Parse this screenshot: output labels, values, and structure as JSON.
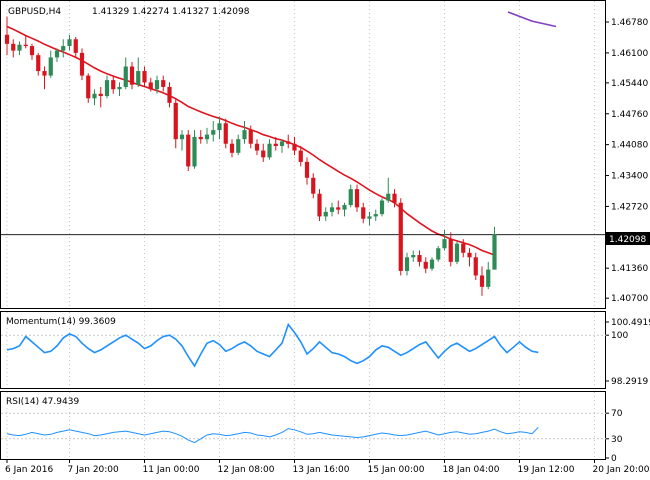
{
  "header": {
    "symbol": "GBPUSD,H4",
    "ohlc": "1.41329 1.42274 1.41327 1.42098"
  },
  "colors": {
    "bull": "#2e8b57",
    "bear": "#d8141e",
    "ma": "#e0141e",
    "ma_upper": "#8040c0",
    "indicator": "#1e90ff",
    "grid": "#c8c8c8",
    "frame": "#000000"
  },
  "chart_data": [
    {
      "type": "candlestick",
      "title": "GBPUSD,H4",
      "y_ticks": [
        "1.46780",
        "1.46100",
        "1.45440",
        "1.44760",
        "1.44080",
        "1.43400",
        "1.42720",
        "1.42040",
        "1.41360",
        "1.40700"
      ],
      "ylim": [
        1.4055,
        1.47
      ],
      "last_price": "1.42098",
      "last_value": 1.42098,
      "x_labels": [
        "6 Jan 2016",
        "7 Jan 20:00",
        "11 Jan 00:00",
        "12 Jan 08:00",
        "13 Jan 16:00",
        "15 Jan 00:00",
        "18 Jan 04:00",
        "19 Jan 12:00",
        "20 Jan 20:00"
      ],
      "x_label_index": [
        0,
        10,
        22,
        34,
        46,
        58,
        70,
        82,
        94
      ],
      "candles": [
        [
          1.465,
          1.469,
          1.4605,
          1.463
        ],
        [
          1.463,
          1.464,
          1.46,
          1.4615
        ],
        [
          1.4615,
          1.4635,
          1.4605,
          1.4628
        ],
        [
          1.4628,
          1.465,
          1.462,
          1.4625
        ],
        [
          1.4625,
          1.463,
          1.4595,
          1.4605
        ],
        [
          1.4605,
          1.461,
          1.456,
          1.457
        ],
        [
          1.457,
          1.458,
          1.453,
          1.456
        ],
        [
          1.456,
          1.4615,
          1.4555,
          1.46
        ],
        [
          1.46,
          1.462,
          1.459,
          1.4615
        ],
        [
          1.4615,
          1.464,
          1.46,
          1.4625
        ],
        [
          1.4625,
          1.465,
          1.4615,
          1.464
        ],
        [
          1.464,
          1.4645,
          1.46,
          1.461
        ],
        [
          1.461,
          1.462,
          1.455,
          1.456
        ],
        [
          1.456,
          1.4565,
          1.45,
          1.451
        ],
        [
          1.451,
          1.453,
          1.4495,
          1.452
        ],
        [
          1.452,
          1.4535,
          1.449,
          1.4515
        ],
        [
          1.4515,
          1.456,
          1.451,
          1.455
        ],
        [
          1.455,
          1.456,
          1.452,
          1.453
        ],
        [
          1.453,
          1.4545,
          1.4515,
          1.4535
        ],
        [
          1.4535,
          1.46,
          1.453,
          1.458
        ],
        [
          1.458,
          1.459,
          1.453,
          1.454
        ],
        [
          1.454,
          1.46,
          1.4535,
          1.457
        ],
        [
          1.457,
          1.458,
          1.4535,
          1.4545
        ],
        [
          1.4545,
          1.4555,
          1.4525,
          1.453
        ],
        [
          1.453,
          1.456,
          1.452,
          1.455
        ],
        [
          1.455,
          1.456,
          1.4525,
          1.4535
        ],
        [
          1.4535,
          1.4545,
          1.449,
          1.45
        ],
        [
          1.45,
          1.451,
          1.44,
          1.442
        ],
        [
          1.442,
          1.444,
          1.4395,
          1.443
        ],
        [
          1.443,
          1.444,
          1.435,
          1.436
        ],
        [
          1.436,
          1.444,
          1.4355,
          1.4425
        ],
        [
          1.4425,
          1.444,
          1.441,
          1.442
        ],
        [
          1.442,
          1.4445,
          1.441,
          1.443
        ],
        [
          1.443,
          1.446,
          1.4415,
          1.444
        ],
        [
          1.444,
          1.447,
          1.442,
          1.4455
        ],
        [
          1.4455,
          1.4465,
          1.44,
          1.441
        ],
        [
          1.441,
          1.442,
          1.438,
          1.439
        ],
        [
          1.439,
          1.443,
          1.4385,
          1.442
        ],
        [
          1.442,
          1.446,
          1.441,
          1.444
        ],
        [
          1.444,
          1.445,
          1.44,
          1.441
        ],
        [
          1.441,
          1.442,
          1.4385,
          1.4395
        ],
        [
          1.4395,
          1.441,
          1.437,
          1.438
        ],
        [
          1.438,
          1.442,
          1.4375,
          1.441
        ],
        [
          1.441,
          1.4425,
          1.4395,
          1.4405
        ],
        [
          1.4405,
          1.442,
          1.439,
          1.4415
        ],
        [
          1.4415,
          1.443,
          1.44,
          1.441
        ],
        [
          1.441,
          1.4425,
          1.4385,
          1.4395
        ],
        [
          1.4395,
          1.4405,
          1.436,
          1.437
        ],
        [
          1.437,
          1.438,
          1.432,
          1.4335
        ],
        [
          1.4335,
          1.4345,
          1.429,
          1.43
        ],
        [
          1.43,
          1.431,
          1.424,
          1.425
        ],
        [
          1.425,
          1.427,
          1.424,
          1.426
        ],
        [
          1.426,
          1.428,
          1.425,
          1.427
        ],
        [
          1.427,
          1.4285,
          1.4255,
          1.4265
        ],
        [
          1.4265,
          1.428,
          1.425,
          1.4275
        ],
        [
          1.4275,
          1.432,
          1.427,
          1.431
        ],
        [
          1.431,
          1.432,
          1.426,
          1.427
        ],
        [
          1.427,
          1.428,
          1.4235,
          1.4245
        ],
        [
          1.4245,
          1.426,
          1.423,
          1.425
        ],
        [
          1.425,
          1.4265,
          1.424,
          1.4255
        ],
        [
          1.4255,
          1.429,
          1.425,
          1.4285
        ],
        [
          1.4285,
          1.4335,
          1.428,
          1.43
        ],
        [
          1.43,
          1.431,
          1.427,
          1.428
        ],
        [
          1.428,
          1.429,
          1.412,
          1.413
        ],
        [
          1.413,
          1.417,
          1.412,
          1.416
        ],
        [
          1.416,
          1.4175,
          1.415,
          1.4165
        ],
        [
          1.4165,
          1.4175,
          1.414,
          1.415
        ],
        [
          1.415,
          1.416,
          1.4125,
          1.4135
        ],
        [
          1.4135,
          1.416,
          1.413,
          1.4155
        ],
        [
          1.4155,
          1.4185,
          1.415,
          1.418
        ],
        [
          1.418,
          1.422,
          1.4175,
          1.42
        ],
        [
          1.42,
          1.4215,
          1.414,
          1.415
        ],
        [
          1.415,
          1.4195,
          1.4145,
          1.419
        ],
        [
          1.419,
          1.42,
          1.416,
          1.417
        ],
        [
          1.417,
          1.418,
          1.414,
          1.416
        ],
        [
          1.416,
          1.417,
          1.411,
          1.412
        ],
        [
          1.412,
          1.414,
          1.4075,
          1.4095
        ],
        [
          1.4095,
          1.415,
          1.409,
          1.4133
        ],
        [
          1.4133,
          1.4227,
          1.4133,
          1.421
        ]
      ],
      "ma_series": [
        1.4668,
        1.4662,
        1.4655,
        1.4648,
        1.4642,
        1.4636,
        1.4629,
        1.4623,
        1.4617,
        1.4612,
        1.4606,
        1.46,
        1.4593,
        1.4585,
        1.4577,
        1.457,
        1.4564,
        1.4559,
        1.4554,
        1.455,
        1.4545,
        1.454,
        1.4536,
        1.4531,
        1.4527,
        1.4522,
        1.4516,
        1.4509,
        1.4501,
        1.4492,
        1.4486,
        1.448,
        1.4475,
        1.447,
        1.4466,
        1.4461,
        1.4455,
        1.445,
        1.4446,
        1.4441,
        1.4436,
        1.443,
        1.4426,
        1.4421,
        1.4418,
        1.4413,
        1.4408,
        1.4402,
        1.4394,
        1.4385,
        1.4375,
        1.4366,
        1.4358,
        1.4349,
        1.4341,
        1.4334,
        1.4326,
        1.4317,
        1.4308,
        1.43,
        1.4293,
        1.4287,
        1.428,
        1.4268,
        1.4256,
        1.4246,
        1.4236,
        1.4227,
        1.4218,
        1.4211,
        1.4206,
        1.42,
        1.4196,
        1.4192,
        1.4188,
        1.4182,
        1.4175,
        1.417,
        1.4165
      ],
      "ma_upper_series": [
        1.47,
        1.468,
        1.4668
      ]
    },
    {
      "type": "line",
      "title": "Momentum(14) 99.3609",
      "y_ticks": [
        "100.4919",
        "100",
        "98.2919"
      ],
      "y_tick_values": [
        100.4919,
        100,
        98.2919
      ],
      "ylim": [
        98.2919,
        100.4919
      ],
      "values": [
        99.45,
        99.5,
        99.6,
        99.95,
        99.75,
        99.55,
        99.35,
        99.4,
        99.6,
        99.9,
        100.05,
        99.95,
        99.7,
        99.5,
        99.35,
        99.45,
        99.6,
        99.75,
        99.9,
        100.0,
        99.85,
        99.7,
        99.5,
        99.6,
        99.8,
        99.95,
        100.0,
        99.85,
        99.6,
        99.2,
        98.85,
        99.3,
        99.7,
        99.8,
        99.65,
        99.4,
        99.5,
        99.65,
        99.75,
        99.6,
        99.4,
        99.3,
        99.2,
        99.45,
        99.7,
        100.4,
        100.1,
        99.75,
        99.3,
        99.5,
        99.75,
        99.55,
        99.35,
        99.3,
        99.2,
        99.05,
        98.95,
        99.05,
        99.2,
        99.45,
        99.6,
        99.55,
        99.4,
        99.25,
        99.35,
        99.5,
        99.65,
        99.75,
        99.45,
        99.15,
        99.4,
        99.6,
        99.7,
        99.55,
        99.4,
        99.5,
        99.65,
        99.8,
        99.95,
        99.6,
        99.35,
        99.55,
        99.75,
        99.55,
        99.4,
        99.36
      ]
    },
    {
      "type": "line",
      "title": "RSI(14) 47.9439",
      "y_ticks": [
        "70",
        "30",
        "0"
      ],
      "y_tick_values": [
        70,
        30,
        0
      ],
      "ylim": [
        0,
        100
      ],
      "levels": [
        70,
        30
      ],
      "values": [
        38,
        36,
        35,
        37,
        40,
        38,
        36,
        37,
        40,
        42,
        44,
        42,
        40,
        38,
        35,
        36,
        38,
        40,
        41,
        42,
        40,
        38,
        36,
        38,
        40,
        42,
        41,
        38,
        34,
        28,
        24,
        30,
        36,
        38,
        37,
        35,
        36,
        38,
        40,
        39,
        36,
        35,
        33,
        36,
        40,
        46,
        44,
        41,
        37,
        38,
        40,
        38,
        36,
        35,
        34,
        33,
        32,
        33,
        35,
        37,
        39,
        38,
        36,
        35,
        36,
        38,
        40,
        42,
        39,
        36,
        38,
        40,
        41,
        39,
        37,
        38,
        40,
        42,
        45,
        41,
        38,
        39,
        41,
        40,
        38,
        48
      ]
    }
  ]
}
